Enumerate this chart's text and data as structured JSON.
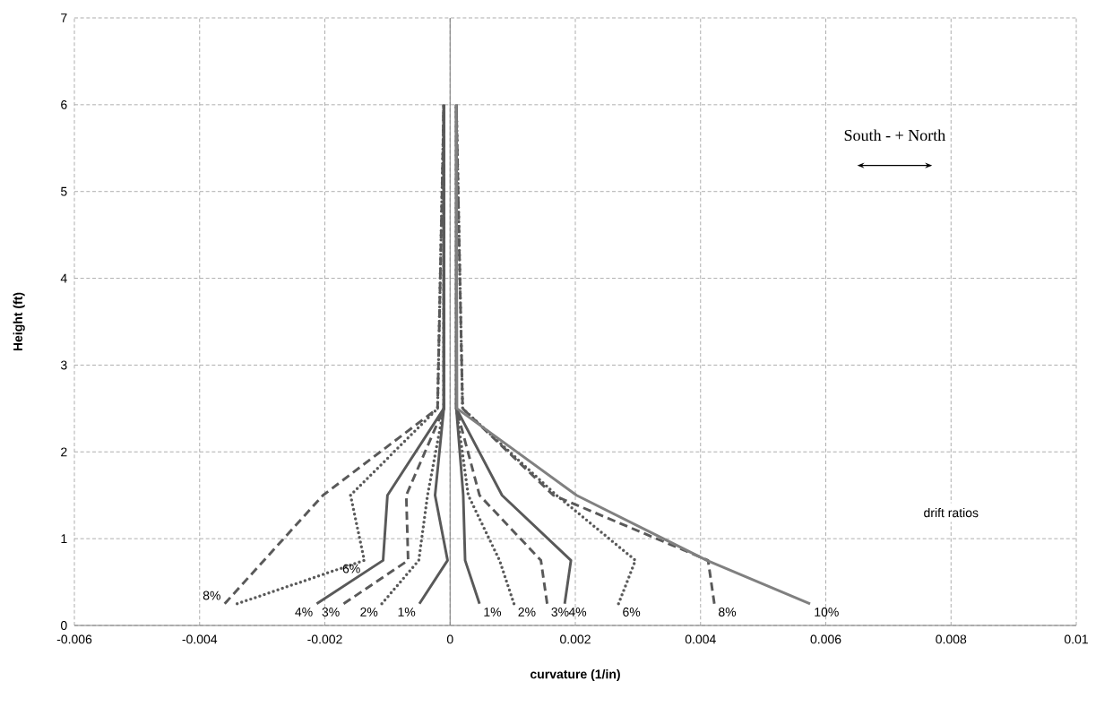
{
  "chart_data": {
    "type": "line",
    "xlabel": "curvature (1/in)",
    "ylabel": "Height (ft)",
    "xlim": [
      -0.006,
      0.01
    ],
    "ylim": [
      0,
      7
    ],
    "xticks": [
      -0.006,
      -0.004,
      -0.002,
      0,
      0.002,
      0.004,
      0.006,
      0.008,
      0.01
    ],
    "yticks": [
      0,
      1,
      2,
      3,
      4,
      5,
      6,
      7
    ],
    "grid": true,
    "annotations": [
      "South -   + North",
      "drift ratios"
    ],
    "series": [
      {
        "name": "1%",
        "color": "#595959",
        "line_style": "solid",
        "x": [
          -0.00049,
          -4e-05,
          -0.00024,
          -0.0001,
          -0.0001
        ],
        "values": [
          0.25,
          0.75,
          1.5,
          2.5,
          6
        ]
      },
      {
        "name": "2%",
        "color": "#595959",
        "line_style": "dotted",
        "x": [
          -0.00109,
          -0.0005,
          -0.00036,
          -0.0001,
          -0.0001
        ],
        "values": [
          0.25,
          0.75,
          1.5,
          2.5,
          6
        ]
      },
      {
        "name": "3%",
        "color": "#595959",
        "line_style": "dashed",
        "x": [
          -0.0017,
          -0.00067,
          -0.0007,
          -0.0001,
          -0.0001
        ],
        "values": [
          0.25,
          0.75,
          1.5,
          2.5,
          6
        ]
      },
      {
        "name": "4%",
        "color": "#595959",
        "line_style": "solid",
        "x": [
          -0.00213,
          -0.00107,
          -0.001,
          -0.0001,
          -0.0001
        ],
        "values": [
          0.25,
          0.75,
          1.5,
          2.5,
          6
        ]
      },
      {
        "name": "6%",
        "color": "#595959",
        "line_style": "dotted",
        "x": [
          -0.0034,
          -0.00137,
          -0.00159,
          -0.0002,
          -0.0001
        ],
        "values": [
          0.25,
          0.75,
          1.5,
          2.5,
          6
        ]
      },
      {
        "name": "8%",
        "color": "#595959",
        "line_style": "dashed",
        "x": [
          -0.0036,
          -0.00203,
          -0.0002,
          -0.0001
        ],
        "values": [
          0.25,
          1.5,
          2.5,
          6
        ]
      },
      {
        "name": "1%",
        "color": "#595959",
        "line_style": "solid",
        "x": [
          0.00047,
          0.00024,
          0.00021,
          0.0001,
          0.0001
        ],
        "values": [
          0.25,
          0.75,
          1.5,
          2.5,
          6
        ]
      },
      {
        "name": "2%",
        "color": "#595959",
        "line_style": "dotted",
        "x": [
          0.00102,
          0.00079,
          0.00029,
          0.0001,
          0.0001
        ],
        "values": [
          0.25,
          0.75,
          1.5,
          2.5,
          6
        ]
      },
      {
        "name": "3%",
        "color": "#595959",
        "line_style": "dashed",
        "x": [
          0.00155,
          0.00145,
          0.00047,
          0.0001,
          0.0001
        ],
        "values": [
          0.25,
          0.75,
          1.5,
          2.5,
          6
        ]
      },
      {
        "name": "4%",
        "color": "#595959",
        "line_style": "solid",
        "x": [
          0.00183,
          0.00193,
          0.00083,
          0.0001,
          0.0001
        ],
        "values": [
          0.25,
          0.75,
          1.5,
          2.5,
          6
        ]
      },
      {
        "name": "6%",
        "color": "#595959",
        "line_style": "dotted",
        "x": [
          0.00269,
          0.00296,
          0.0017,
          0.0002,
          0.0001
        ],
        "values": [
          0.25,
          0.75,
          1.5,
          2.5,
          6
        ]
      },
      {
        "name": "8%",
        "color": "#595959",
        "line_style": "dashed",
        "x": [
          0.00422,
          0.00412,
          0.00165,
          0.0002,
          0.0001
        ],
        "values": [
          0.25,
          0.75,
          1.5,
          2.5,
          6
        ]
      },
      {
        "name": "10%",
        "color": "#808080",
        "line_style": "solid",
        "x": [
          0.00575,
          0.0041,
          0.00202,
          0.00011,
          0.0001
        ],
        "values": [
          0.25,
          0.75,
          1.5,
          2.5,
          6
        ]
      }
    ]
  }
}
